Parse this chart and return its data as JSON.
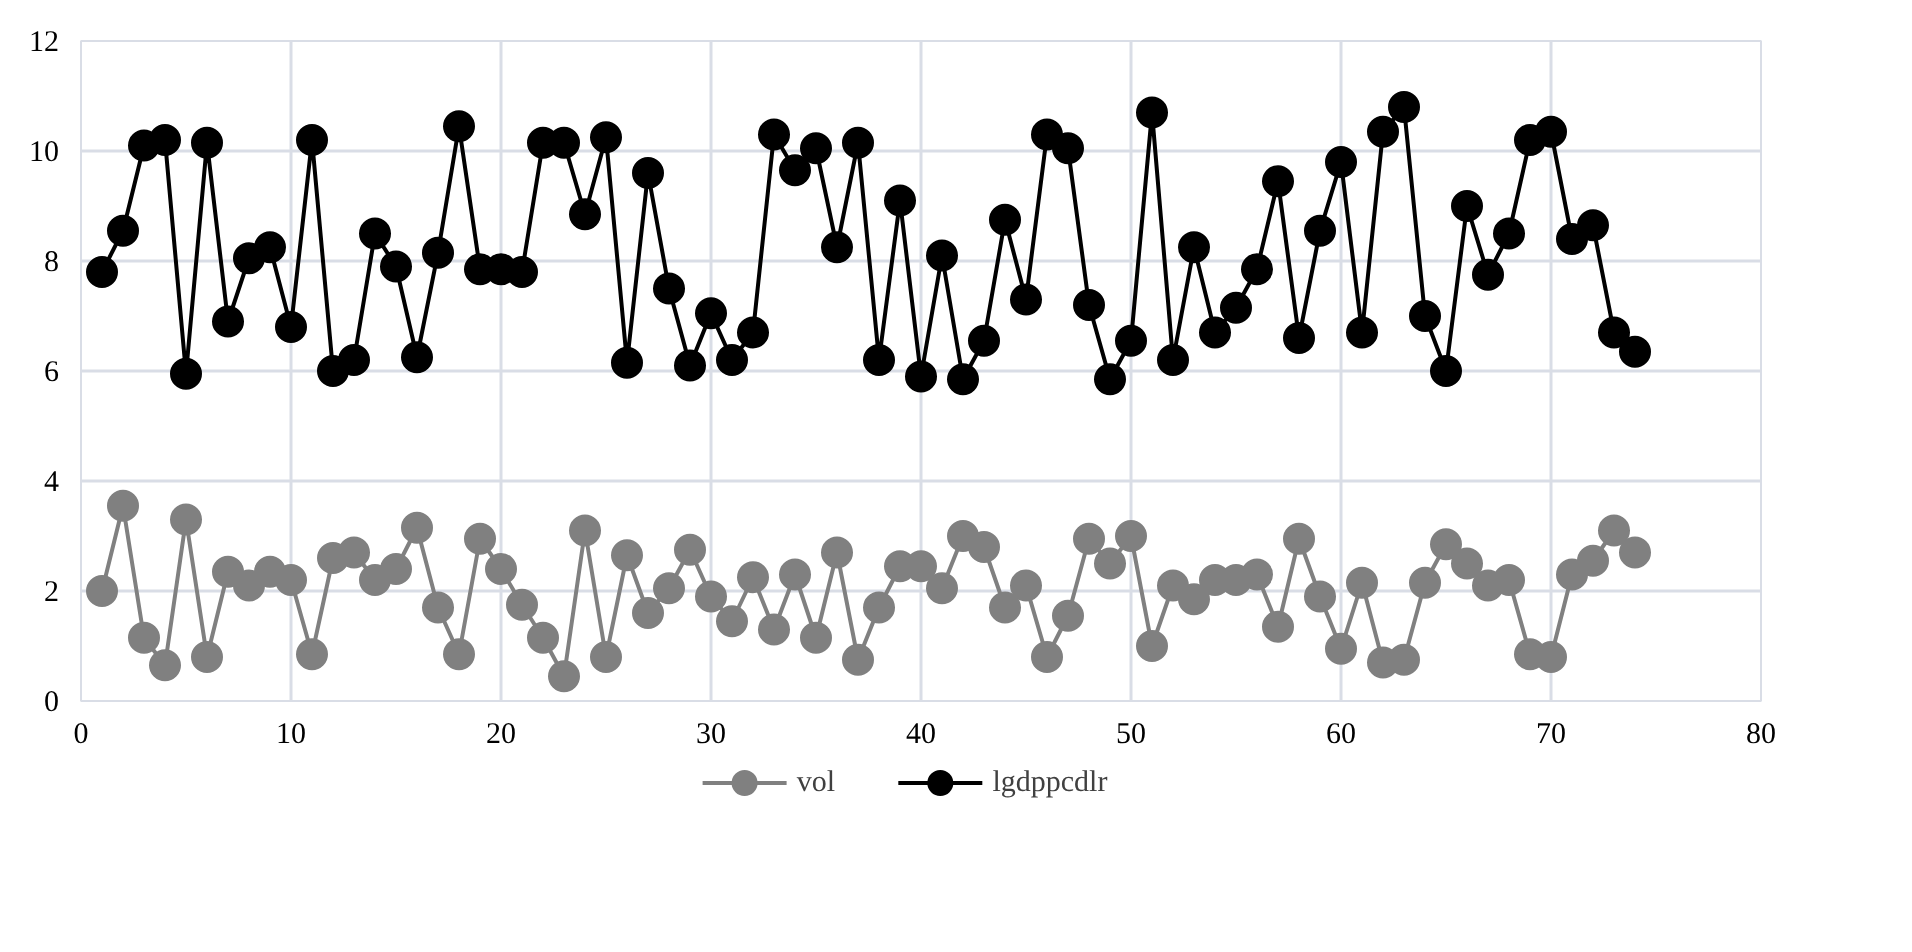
{
  "chart_data": {
    "type": "line",
    "x": [
      1,
      2,
      3,
      4,
      5,
      6,
      7,
      8,
      9,
      10,
      11,
      12,
      13,
      14,
      15,
      16,
      17,
      18,
      19,
      20,
      21,
      22,
      23,
      24,
      25,
      26,
      27,
      28,
      29,
      30,
      31,
      32,
      33,
      34,
      35,
      36,
      37,
      38,
      39,
      40,
      41,
      42,
      43,
      44,
      45,
      46,
      47,
      48,
      49,
      50,
      51,
      52,
      53,
      54,
      55,
      56,
      57,
      58,
      59,
      60,
      61,
      62,
      63,
      64,
      65,
      66,
      67,
      68,
      69,
      70,
      71,
      72,
      73,
      74
    ],
    "series": [
      {
        "name": "vol",
        "color": "#808080",
        "values": [
          2.0,
          3.55,
          1.15,
          0.65,
          3.3,
          0.8,
          2.35,
          2.1,
          2.35,
          2.2,
          0.85,
          2.6,
          2.7,
          2.2,
          2.4,
          3.15,
          1.7,
          0.85,
          2.95,
          2.4,
          1.75,
          1.15,
          0.45,
          3.1,
          0.8,
          2.65,
          1.6,
          2.05,
          2.75,
          1.9,
          1.45,
          2.25,
          1.3,
          2.3,
          1.15,
          2.7,
          0.75,
          1.7,
          2.45,
          2.45,
          2.05,
          3.0,
          2.8,
          1.7,
          2.1,
          0.8,
          1.55,
          2.95,
          2.5,
          3.0,
          1.0,
          2.1,
          1.85,
          2.2,
          2.2,
          2.3,
          1.35,
          2.95,
          1.9,
          0.95,
          2.15,
          0.7,
          0.75,
          2.15,
          2.85,
          2.5,
          2.1,
          2.2,
          0.85,
          0.8,
          2.3,
          2.55,
          3.1,
          2.7
        ]
      },
      {
        "name": "lgdppcdlr",
        "color": "#000000",
        "values": [
          7.8,
          8.55,
          10.1,
          10.2,
          5.95,
          10.15,
          6.9,
          8.05,
          8.25,
          6.8,
          10.2,
          6.0,
          6.2,
          8.5,
          7.9,
          6.25,
          8.15,
          10.45,
          7.85,
          7.85,
          7.8,
          10.15,
          10.15,
          8.85,
          10.25,
          6.15,
          9.6,
          7.5,
          6.1,
          7.05,
          6.2,
          6.7,
          10.3,
          9.65,
          10.05,
          8.25,
          10.15,
          6.2,
          9.1,
          5.9,
          8.1,
          5.85,
          6.55,
          8.75,
          7.3,
          10.3,
          10.05,
          7.2,
          5.85,
          6.55,
          10.7,
          6.2,
          8.25,
          6.7,
          7.15,
          7.85,
          9.45,
          6.6,
          8.55,
          9.8,
          6.7,
          10.35,
          10.8,
          7.0,
          6.0,
          9.0,
          7.75,
          8.5,
          10.2,
          10.35,
          8.4,
          8.65,
          6.7,
          6.35
        ]
      }
    ],
    "xlim": [
      0,
      80
    ],
    "xticks": [
      0,
      10,
      20,
      30,
      40,
      50,
      60,
      70,
      80
    ],
    "ylim": [
      0,
      12
    ],
    "yticks": [
      0,
      2,
      4,
      6,
      8,
      10,
      12
    ],
    "grid": true,
    "legend": "bottom",
    "marker": "circle",
    "line_style": "solid"
  }
}
